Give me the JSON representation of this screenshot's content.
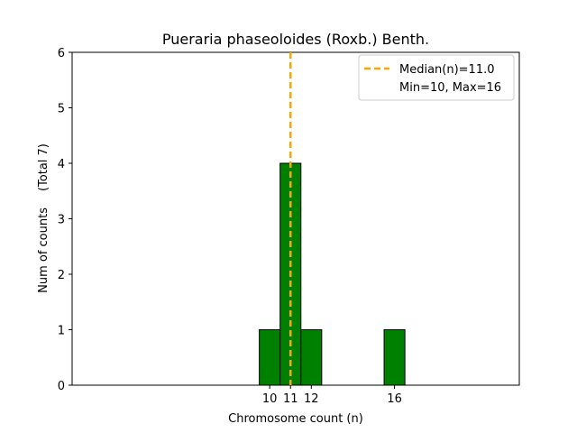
{
  "chart_data": {
    "type": "bar",
    "title": "Pueraria phaseoloides (Roxb.) Benth.",
    "xlabel": "Chromosome count (n)",
    "ylabel": "Num of counts",
    "ylabel_total": "(Total 7)",
    "x": [
      10,
      11,
      12,
      16
    ],
    "values": [
      1,
      4,
      1,
      1
    ],
    "xticks": [
      "10",
      "11",
      "12",
      "16"
    ],
    "yticks": [
      "0",
      "1",
      "2",
      "3",
      "4",
      "5",
      "6"
    ],
    "ylim": [
      0,
      6
    ],
    "xlim": [
      0.5,
      22
    ],
    "baseline_end": 19,
    "median": 11.0,
    "legend": [
      {
        "label": "Median(n)=11.0",
        "style": "dashed-line"
      },
      {
        "label": "Min=10, Max=16",
        "style": "none"
      }
    ],
    "legend_position": "top-right",
    "grid": false,
    "colors": {
      "bar_fill": "#008000",
      "bar_edge": "#000000",
      "median_line": "#FFA500",
      "axes": "#000000"
    }
  }
}
